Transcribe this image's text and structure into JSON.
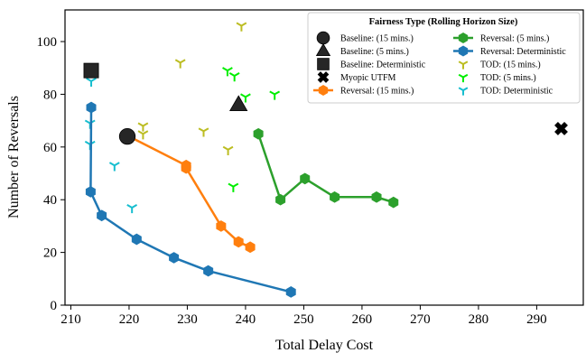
{
  "chart_data": {
    "type": "scatter",
    "xlabel": "Total Delay Cost",
    "ylabel": "Number of Reversals",
    "xlim": [
      209,
      298
    ],
    "ylim": [
      0,
      112
    ],
    "xticks": [
      210,
      220,
      230,
      240,
      250,
      260,
      270,
      280,
      290
    ],
    "yticks": [
      0,
      20,
      40,
      60,
      80,
      100
    ],
    "grid": false,
    "legend": {
      "title": "Fairness Type (Rolling Horizon Size)",
      "placement": "top-right",
      "columns": 2
    },
    "series": [
      {
        "name": "Baseline: (15 mins.)",
        "marker": "circle",
        "color": "#262626",
        "line": false,
        "points": [
          [
            219.7,
            64
          ]
        ]
      },
      {
        "name": "Baseline: (5 mins.)",
        "marker": "triangle",
        "color": "#262626",
        "line": false,
        "points": [
          [
            238.8,
            76
          ]
        ]
      },
      {
        "name": "Baseline: Deterministic",
        "marker": "square",
        "color": "#262626",
        "line": false,
        "points": [
          [
            213.5,
            89
          ]
        ]
      },
      {
        "name": "Myopic UTFM",
        "marker": "x",
        "color": "#000000",
        "line": false,
        "points": [
          [
            294.2,
            67
          ]
        ]
      },
      {
        "name": "Reversal: (15 mins.)",
        "marker": "hexagon",
        "color": "#ff7f0e",
        "line": true,
        "points": [
          [
            220,
            64
          ],
          [
            229.8,
            53
          ],
          [
            229.8,
            52
          ],
          [
            235.8,
            30
          ],
          [
            238.8,
            24
          ],
          [
            240.8,
            22
          ]
        ]
      },
      {
        "name": "Reversal: (5 mins.)",
        "marker": "hexagon",
        "color": "#2ca02c",
        "line": true,
        "points": [
          [
            242.2,
            65
          ],
          [
            246,
            40
          ],
          [
            250.2,
            48
          ],
          [
            255.3,
            41
          ],
          [
            262.5,
            41
          ],
          [
            265.4,
            39
          ]
        ]
      },
      {
        "name": "Reversal: Deterministic",
        "marker": "hexagon",
        "color": "#1f77b4",
        "line": true,
        "points": [
          [
            213.5,
            75
          ],
          [
            213.4,
            43
          ],
          [
            215.3,
            34
          ],
          [
            221.3,
            25
          ],
          [
            227.7,
            18
          ],
          [
            233.6,
            13
          ],
          [
            247.8,
            5
          ]
        ]
      },
      {
        "name": "TOD: (15 mins.)",
        "marker": "tri_down",
        "color": "#bcbd22",
        "line": false,
        "points": [
          [
            228.8,
            92
          ],
          [
            239.3,
            106
          ],
          [
            222.4,
            68
          ],
          [
            222.4,
            65
          ],
          [
            232.8,
            66
          ],
          [
            237,
            59
          ]
        ]
      },
      {
        "name": "TOD: (5 mins.)",
        "marker": "tri_down",
        "color": "#00ee00",
        "line": false,
        "points": [
          [
            236.9,
            89
          ],
          [
            238.1,
            87
          ],
          [
            240,
            79
          ],
          [
            245,
            80
          ],
          [
            237.9,
            45
          ]
        ]
      },
      {
        "name": "TOD: Deterministic",
        "marker": "tri_down",
        "color": "#17becf",
        "line": false,
        "points": [
          [
            213.5,
            89
          ],
          [
            213.5,
            85
          ],
          [
            213.3,
            69
          ],
          [
            213.3,
            61
          ],
          [
            217.5,
            53
          ],
          [
            220.5,
            37
          ]
        ]
      }
    ]
  }
}
